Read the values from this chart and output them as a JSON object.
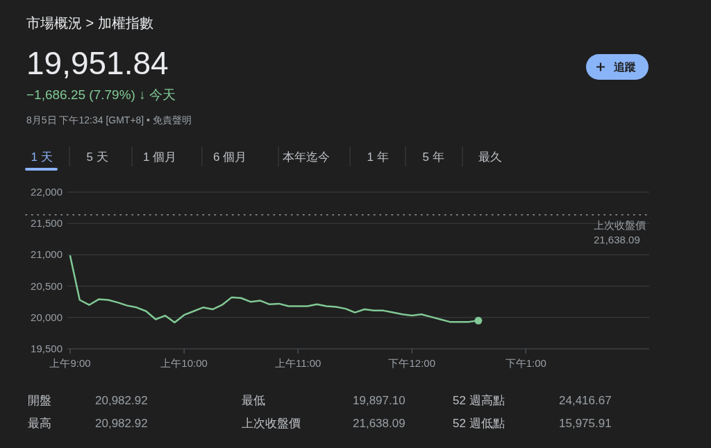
{
  "chart_data": {
    "type": "line",
    "title": "市場概況 > 加權指數",
    "categories": [
      "上午9:00",
      null,
      null,
      null,
      null,
      null,
      null,
      null,
      null,
      null,
      null,
      null,
      "上午10:00",
      null,
      null,
      null,
      null,
      null,
      null,
      null,
      null,
      null,
      null,
      null,
      "上午11:00",
      null,
      null,
      null,
      null,
      null,
      null,
      null,
      null,
      null,
      null,
      null,
      "下午12:00",
      null,
      null,
      null,
      null,
      null,
      null,
      null,
      null,
      null,
      null,
      null,
      "下午1:00",
      null,
      null,
      null,
      null,
      null,
      null,
      null,
      null,
      null,
      null,
      null,
      null,
      null
    ],
    "series": [
      {
        "color": "#81c995",
        "values": [
          20980,
          20280,
          20200,
          20290,
          20280,
          20240,
          20190,
          20160,
          20100,
          19970,
          20030,
          19920,
          20040,
          20100,
          20160,
          20130,
          20200,
          20320,
          20310,
          20250,
          20270,
          20210,
          20220,
          20180,
          20180,
          20180,
          20210,
          20180,
          20170,
          20140,
          20080,
          20130,
          20110,
          20110,
          20080,
          20050,
          20030,
          20050,
          20010,
          19970,
          19930,
          19930,
          19930,
          19950,
          null,
          null,
          null,
          null,
          null,
          null,
          null,
          null,
          null,
          null,
          null,
          null,
          null,
          null,
          null,
          null,
          null,
          null
        ]
      }
    ],
    "ylim": [
      19500,
      22000
    ],
    "yticks": [
      {
        "value": 19500,
        "label": "19,500"
      },
      {
        "value": 20000,
        "label": "20,000"
      },
      {
        "value": 20500,
        "label": "20,500"
      },
      {
        "value": 21000,
        "label": "21,000"
      },
      {
        "value": 21500,
        "label": "21,500"
      },
      {
        "value": 22000,
        "label": "22,000"
      }
    ],
    "grid": "y",
    "line_style": "solid",
    "ref_lines": [
      {
        "axis": "y",
        "value": 21638.09,
        "label": "上次收盤價 21,638.09",
        "line_style": "dotted",
        "color": "#9aa0a6"
      }
    ],
    "annotations": [
      "19,951.84",
      "−1,686.25 (7.79%) ↓ 今天",
      "8月5日 下午12:34 [GMT+8] • 免責聲明",
      "追蹤",
      "1 天",
      "5 天",
      "1 個月",
      "6 個月",
      "本年迄今",
      "1 年",
      "5 年",
      "最久",
      "開盤",
      "20,982.92",
      "最低",
      "19,897.10",
      "52 週高點",
      "24,416.67",
      "最高",
      "20,982.92",
      "上次收盤價",
      "21,638.09",
      "52 週低點",
      "15,975.91"
    ]
  }
}
